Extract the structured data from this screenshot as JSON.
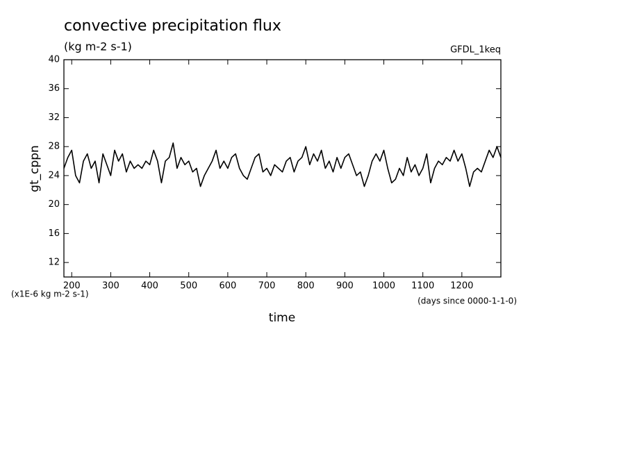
{
  "chart_data": {
    "type": "line",
    "title": "convective precipitation flux",
    "subtitle": "(kg m-2 s-1)",
    "annotation": "GFDL_1keq",
    "y_label": "gt_cppn",
    "x_label": "time",
    "y_unit_note": "(x1E-6 kg m-2 s-1)",
    "x_unit_note": "(days since 0000-1-1-0)",
    "xlim": [
      180,
      1300
    ],
    "xticks": [
      200,
      300,
      400,
      500,
      600,
      700,
      800,
      900,
      1000,
      1100,
      1200
    ],
    "ylim": [
      10,
      40
    ],
    "yticks": [
      12,
      16,
      20,
      24,
      28,
      32,
      36,
      40
    ],
    "grid": false,
    "x": [
      180,
      190,
      200,
      210,
      220,
      230,
      240,
      250,
      260,
      270,
      280,
      290,
      300,
      310,
      320,
      330,
      340,
      350,
      360,
      370,
      380,
      390,
      400,
      410,
      420,
      430,
      440,
      450,
      460,
      470,
      480,
      490,
      500,
      510,
      520,
      530,
      540,
      550,
      560,
      570,
      580,
      590,
      600,
      610,
      620,
      630,
      640,
      650,
      660,
      670,
      680,
      690,
      700,
      710,
      720,
      730,
      740,
      750,
      760,
      770,
      780,
      790,
      800,
      810,
      820,
      830,
      840,
      850,
      860,
      870,
      880,
      890,
      900,
      910,
      920,
      930,
      940,
      950,
      960,
      970,
      980,
      990,
      1000,
      1010,
      1020,
      1030,
      1040,
      1050,
      1060,
      1070,
      1080,
      1090,
      1100,
      1110,
      1120,
      1130,
      1140,
      1150,
      1160,
      1170,
      1180,
      1190,
      1200,
      1210,
      1220,
      1230,
      1240,
      1250,
      1260,
      1270,
      1280,
      1290,
      1300
    ],
    "series": [
      {
        "color": "#000000",
        "values": [
          25,
          26.5,
          27.5,
          24,
          23,
          26,
          27,
          25,
          26,
          23,
          27,
          25.5,
          24,
          27.5,
          26,
          27,
          24.5,
          26,
          25,
          25.5,
          25,
          26,
          25.5,
          27.5,
          26,
          23,
          26,
          26.5,
          28.5,
          25,
          26.5,
          25.5,
          26,
          24.5,
          25,
          22.5,
          24,
          25,
          26,
          27.5,
          25,
          26,
          25,
          26.5,
          27,
          25,
          24,
          23.5,
          25,
          26.5,
          27,
          24.5,
          25,
          24,
          25.5,
          25,
          24.5,
          26,
          26.5,
          24.5,
          26,
          26.5,
          28,
          25.5,
          27,
          26,
          27.5,
          25,
          26,
          24.5,
          26.5,
          25,
          26.5,
          27,
          25.5,
          24,
          24.5,
          22.5,
          24,
          26,
          27,
          26,
          27.5,
          25,
          23,
          23.5,
          25,
          24,
          26.5,
          24.5,
          25.5,
          24,
          25,
          27,
          23,
          25,
          26,
          25.5,
          26.5,
          26,
          27.5,
          26,
          27,
          25,
          22.5,
          24.5,
          25,
          24.5,
          26,
          27.5,
          26.5,
          28,
          26.5
        ]
      }
    ]
  }
}
